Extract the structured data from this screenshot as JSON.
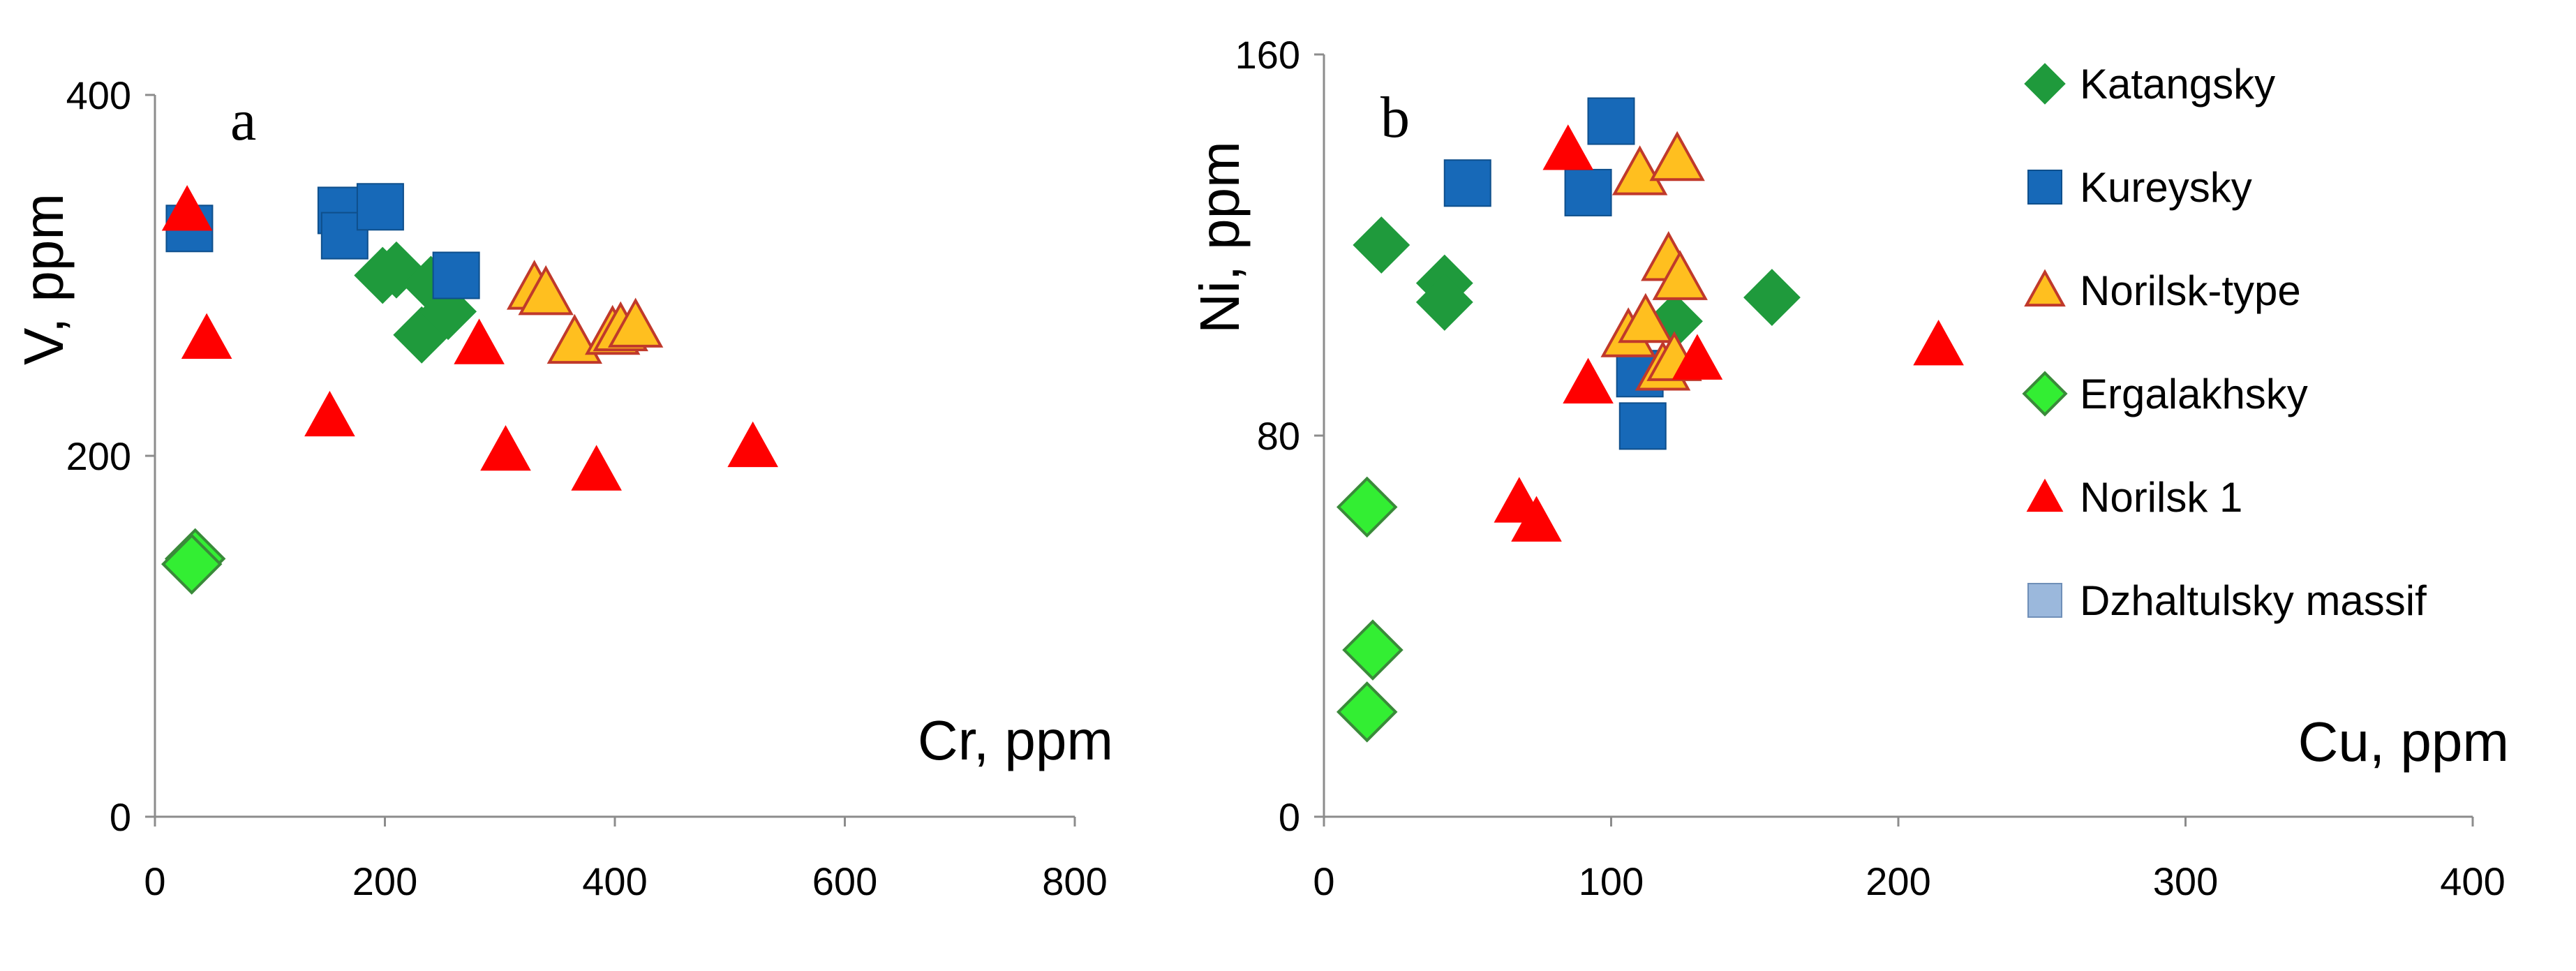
{
  "colors": {
    "katangsky": "#1f9a3c",
    "kureysky": "#1769b8",
    "norilsk_type_fill": "#ffbf1f",
    "norilsk_type_edge": "#c0392b",
    "ergalakhsky_fill": "#33ee33",
    "ergalakhsky_edge": "#3a8a3a",
    "norilsk1": "#ff0000",
    "dzhaltulsky": "#9bb8dc",
    "axis": "#8c8c8c"
  },
  "legend": [
    {
      "name": "Katangsky",
      "marker": "diamond",
      "key": "katangsky"
    },
    {
      "name": "Kureysky",
      "marker": "square",
      "key": "kureysky"
    },
    {
      "name": "Norilsk-type",
      "marker": "triangle-outline",
      "key": "norilsk_type"
    },
    {
      "name": "Ergalakhsky",
      "marker": "diamond-outline",
      "key": "ergalakhsky"
    },
    {
      "name": "Norilsk 1",
      "marker": "triangle",
      "key": "norilsk1"
    },
    {
      "name": "Dzhaltulsky massif",
      "marker": "square-light",
      "key": "dzhaltulsky"
    }
  ],
  "chart_data": [
    {
      "type": "scatter",
      "panel_label": "a",
      "xlabel": "Cr, ppm",
      "ylabel": "V, ppm",
      "xlim": [
        0,
        800
      ],
      "ylim": [
        0,
        400
      ],
      "xticks": [
        0,
        200,
        400,
        600,
        800
      ],
      "yticks": [
        0,
        200,
        400
      ],
      "series": [
        {
          "key": "katangsky",
          "points": [
            [
              198,
              300
            ],
            [
              210,
              303
            ],
            [
              240,
              295
            ],
            [
              232,
              267
            ],
            [
              255,
              280
            ]
          ]
        },
        {
          "key": "kureysky",
          "points": [
            [
              30,
              326
            ],
            [
              162,
              336
            ],
            [
              165,
              322
            ],
            [
              196,
              338
            ],
            [
              262,
              300
            ]
          ]
        },
        {
          "key": "norilsk_type",
          "points": [
            [
              330,
              293
            ],
            [
              340,
              290
            ],
            [
              365,
              263
            ],
            [
              398,
              268
            ],
            [
              405,
              270
            ],
            [
              418,
              272
            ]
          ]
        },
        {
          "key": "ergalakhsky",
          "points": [
            [
              35,
              143
            ],
            [
              32,
              140
            ]
          ]
        },
        {
          "key": "norilsk1",
          "points": [
            [
              28,
              336
            ],
            [
              45,
              265
            ],
            [
              152,
              222
            ],
            [
              282,
              262
            ],
            [
              305,
              203
            ],
            [
              384,
              192
            ],
            [
              520,
              205
            ]
          ]
        },
        {
          "key": "dzhaltulsky",
          "points": []
        }
      ]
    },
    {
      "type": "scatter",
      "panel_label": "b",
      "xlabel": "Cu, ppm",
      "ylabel": "Ni, ppm",
      "xlim": [
        0,
        400
      ],
      "ylim": [
        0,
        160
      ],
      "xticks": [
        0,
        100,
        200,
        300,
        400
      ],
      "yticks": [
        0,
        80,
        160
      ],
      "series": [
        {
          "key": "katangsky",
          "points": [
            [
              20,
              120
            ],
            [
              42,
              112
            ],
            [
              42,
              108
            ],
            [
              122,
              104
            ],
            [
              156,
              109
            ]
          ]
        },
        {
          "key": "kureysky",
          "points": [
            [
              50,
              133
            ],
            [
              92,
              131
            ],
            [
              100,
              146
            ],
            [
              110,
              93
            ],
            [
              111,
              82
            ]
          ]
        },
        {
          "key": "norilsk_type",
          "points": [
            [
              110,
              135
            ],
            [
              123,
              138
            ],
            [
              120,
              117
            ],
            [
              124,
              113
            ],
            [
              106,
              101
            ],
            [
              112,
              104
            ],
            [
              118,
              94
            ],
            [
              122,
              96
            ]
          ]
        },
        {
          "key": "ergalakhsky",
          "points": [
            [
              15,
              65
            ],
            [
              17,
              35
            ],
            [
              15,
              22
            ]
          ]
        },
        {
          "key": "norilsk1",
          "points": [
            [
              85,
              140
            ],
            [
              68,
              66
            ],
            [
              74,
              62
            ],
            [
              92,
              91
            ],
            [
              130,
              96
            ],
            [
              214,
              99
            ]
          ]
        },
        {
          "key": "dzhaltulsky",
          "points": []
        }
      ]
    }
  ]
}
